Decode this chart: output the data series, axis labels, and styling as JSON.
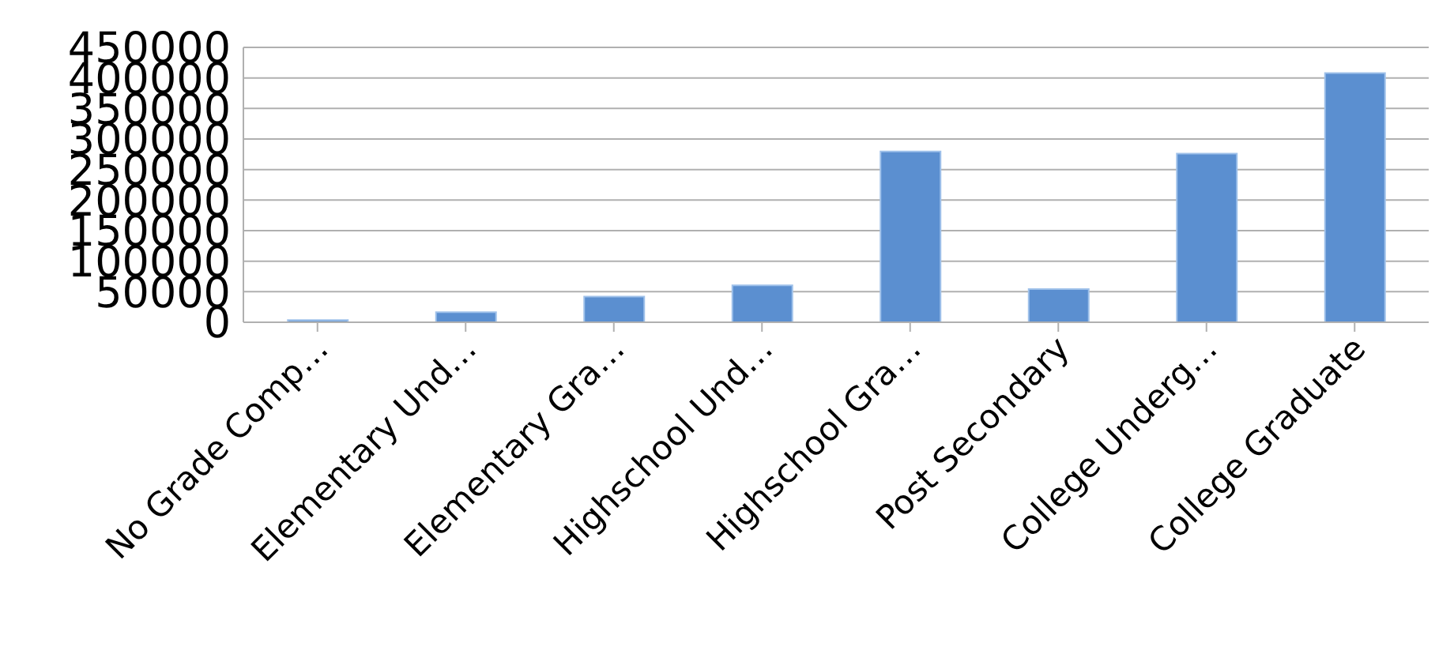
{
  "chart_data": {
    "type": "bar",
    "categories": [
      "No Grade Comp…",
      "Elementary Und…",
      "Elementary Gra…",
      "Highschool Und…",
      "Highschool Gra…",
      "Post Secondary",
      "College Underg…",
      "College Graduate"
    ],
    "values": [
      3500,
      16600,
      42000,
      60300,
      279600,
      54200,
      276100,
      408000
    ],
    "color": "#5b8fd0",
    "ylim": [
      0,
      450000
    ],
    "yticks": [
      0,
      50000,
      100000,
      150000,
      200000,
      250000,
      300000,
      350000,
      400000,
      450000
    ],
    "grid": "y"
  }
}
